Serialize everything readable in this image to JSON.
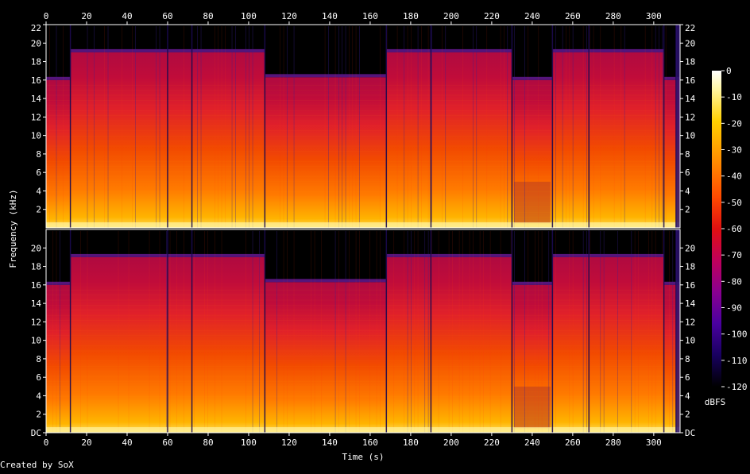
{
  "chart_data": {
    "type": "heatmap",
    "title": "",
    "xlabel": "Time (s)",
    "ylabel": "Frequency (kHz)",
    "colorbar_label": "dBFS",
    "credit": "Created by SoX",
    "xlim": [
      0,
      313
    ],
    "ylim": [
      0,
      22
    ],
    "x_ticks": [
      "0",
      "20",
      "40",
      "60",
      "80",
      "100",
      "120",
      "140",
      "160",
      "180",
      "200",
      "220",
      "240",
      "260",
      "280",
      "300"
    ],
    "y_ticks_top": [
      "2",
      "4",
      "6",
      "8",
      "10",
      "12",
      "14",
      "16",
      "18",
      "20",
      "22"
    ],
    "y_ticks_bottom": [
      "DC",
      "2",
      "4",
      "6",
      "8",
      "10",
      "12",
      "14",
      "16",
      "18",
      "20"
    ],
    "colorbar_ticks": [
      "0",
      "-10",
      "-20",
      "-30",
      "-40",
      "-50",
      "-60",
      "-70",
      "-80",
      "-90",
      "-100",
      "-110",
      "-120"
    ],
    "colorbar_range": [
      -120,
      0
    ],
    "channels": 2,
    "spectral_content": {
      "bandwidth_cutoff_khz": [
        {
          "start": 0,
          "end": 12,
          "khz": 16
        },
        {
          "start": 12,
          "end": 108,
          "khz": 19
        },
        {
          "start": 108,
          "end": 168,
          "khz": 16.3
        },
        {
          "start": 168,
          "end": 230,
          "khz": 19
        },
        {
          "start": 230,
          "end": 250,
          "khz": 16
        },
        {
          "start": 250,
          "end": 305,
          "khz": 19
        },
        {
          "start": 305,
          "end": 313,
          "khz": 16
        }
      ],
      "quiet_segment": {
        "start": 231,
        "end": 249,
        "level_db": -75
      },
      "track_breaks_s": [
        12,
        60,
        72,
        108,
        168,
        190,
        230,
        250,
        268,
        305,
        311
      ]
    }
  }
}
